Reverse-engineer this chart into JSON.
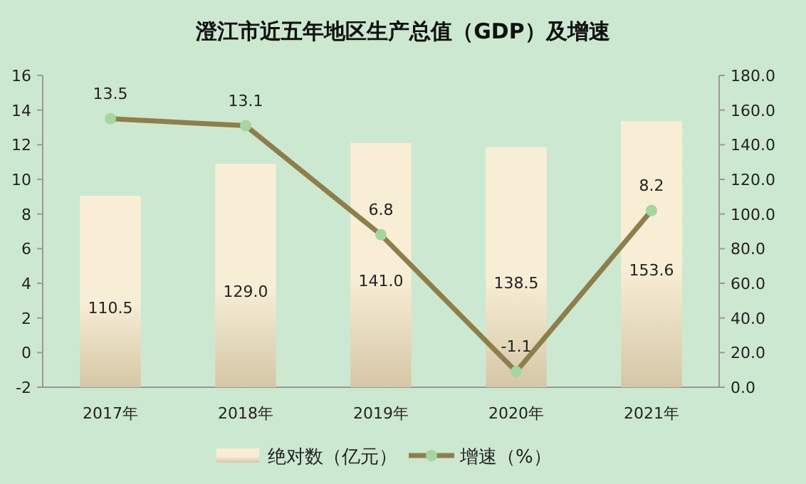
{
  "chart_data": {
    "type": "bar",
    "title": "澄江市近五年地区生产总值（GDP）及增速",
    "categories": [
      "2017年",
      "2018年",
      "2019年",
      "2020年",
      "2021年"
    ],
    "series": [
      {
        "name": "绝对数（亿元）",
        "axis": "y2",
        "color": "#f8eed6",
        "values": [
          110.5,
          129.0,
          141.0,
          138.5,
          153.6
        ],
        "value_labels": [
          "110.5",
          "129.0",
          "141.0",
          "138.5",
          "153.6"
        ]
      },
      {
        "name": "增速（%）",
        "type": "line",
        "axis": "y",
        "color": "#8c7f4c",
        "marker": "circle",
        "values": [
          13.5,
          13.1,
          6.8,
          -1.1,
          8.2
        ],
        "value_labels": [
          "13.5",
          "13.1",
          "6.8",
          "-1.1",
          "8.2"
        ]
      }
    ],
    "ylim": [
      -2,
      16
    ],
    "yticks": [
      -2,
      0,
      2,
      4,
      6,
      8,
      10,
      12,
      14,
      16
    ],
    "y2lim": [
      0,
      180
    ],
    "y2ticks": [
      {
        "value": 0,
        "label": "0.0"
      },
      {
        "value": 20,
        "label": "20.0"
      },
      {
        "value": 40,
        "label": "40.0"
      },
      {
        "value": 60,
        "label": "60.0"
      },
      {
        "value": 80,
        "label": "80.0"
      },
      {
        "value": 100,
        "label": "100.0"
      },
      {
        "value": 120,
        "label": "120.0"
      },
      {
        "value": 140,
        "label": "140.0"
      },
      {
        "value": 160,
        "label": "160.0"
      },
      {
        "value": 180,
        "label": "180.0"
      }
    ],
    "legend": "bottom",
    "grid": false
  }
}
